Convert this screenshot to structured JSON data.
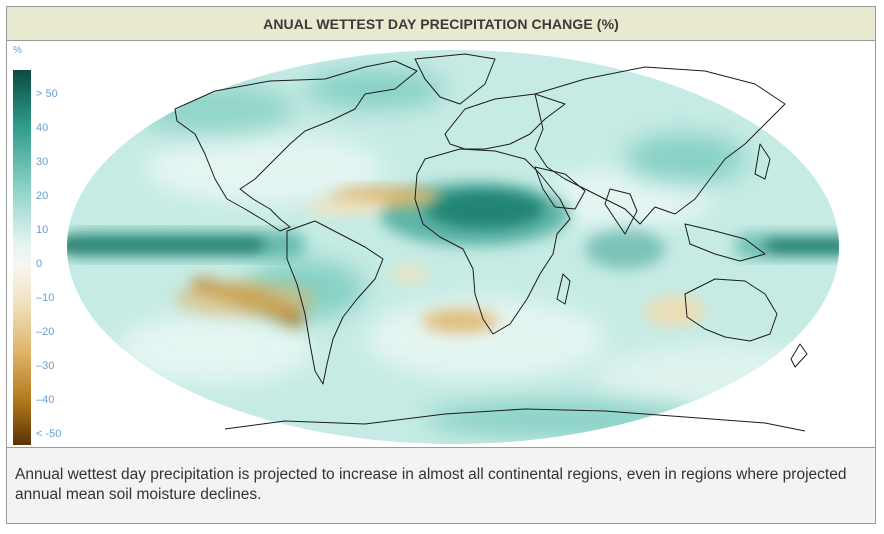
{
  "title": "ANUAL WETTEST DAY PRECIPITATION CHANGE (%)",
  "legend": {
    "unit": "%",
    "ticks": [
      "> 50",
      "40",
      "30",
      "20",
      "10",
      "0",
      "–10",
      "–20",
      "–30",
      "–40",
      "< -50"
    ],
    "colors": {
      "max": "#0b4a3f",
      "high": "#2f9c8c",
      "mid_high": "#8fd3c8",
      "zero": "#f7f7f2",
      "mid_low": "#dfc58c",
      "low": "#b27a1f",
      "min": "#5b3205"
    }
  },
  "map": {
    "type": "choropleth",
    "projection": "robinson",
    "variable": "percent change",
    "features": {
      "strong_increase": "equatorial eastern and central pacific band, central africa (sahel)",
      "decrease": "subtropical atlantic off west africa, southeast pacific off chile, southern atlantic west of namibia, central australia"
    }
  },
  "caption": "Annual wettest day precipitation is projected to increase in almost all continental regions, even in regions where projected annual mean soil moisture declines."
}
